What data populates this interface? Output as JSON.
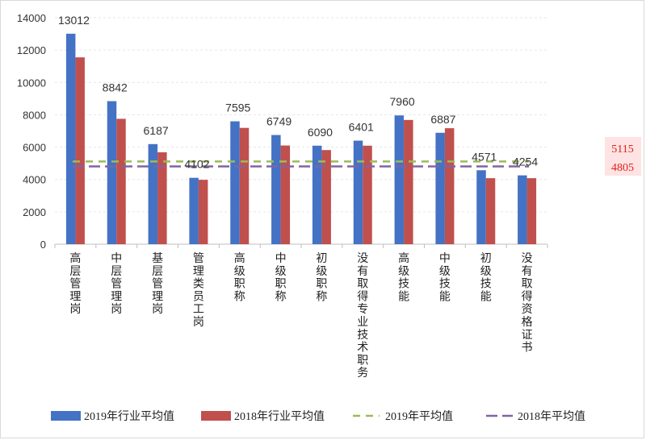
{
  "chart_data": {
    "type": "bar",
    "title": "",
    "xlabel": "",
    "ylabel": "",
    "ylim": [
      0,
      14000
    ],
    "yticks": [
      0,
      2000,
      4000,
      6000,
      8000,
      10000,
      12000,
      14000
    ],
    "categories": [
      "高层管理岗",
      "中层管理岗",
      "基层管理岗",
      "管理类员工岗",
      "高级职称",
      "中级职称",
      "初级职称",
      "没有取得专业技术职务",
      "高级技能",
      "中级技能",
      "初级技能",
      "没有取得资格证书"
    ],
    "series": [
      {
        "name": "2019年行业平均值",
        "color": "#4472c4",
        "values": [
          13012,
          8842,
          6187,
          4102,
          7595,
          6749,
          6090,
          6401,
          7960,
          6887,
          4571,
          4254
        ]
      },
      {
        "name": "2018年行业平均值",
        "color": "#c0504d",
        "values": [
          11550,
          7750,
          5680,
          3980,
          7190,
          6100,
          5820,
          6090,
          7680,
          7170,
          4080,
          4080
        ]
      }
    ],
    "data_labels": [
      "13012",
      "8842",
      "6187",
      "4102",
      "7595",
      "6749",
      "6090",
      "6401",
      "7960",
      "6887",
      "4571",
      "4254"
    ],
    "reference_lines": [
      {
        "name": "2019年平均值",
        "value": 5115,
        "label": "5115",
        "color": "#9bbb59",
        "style": "dashed"
      },
      {
        "name": "2018年平均值",
        "value": 4805,
        "label": "4805",
        "color": "#8064a2",
        "style": "dashed"
      }
    ],
    "legend_position": "bottom",
    "grid": true
  }
}
